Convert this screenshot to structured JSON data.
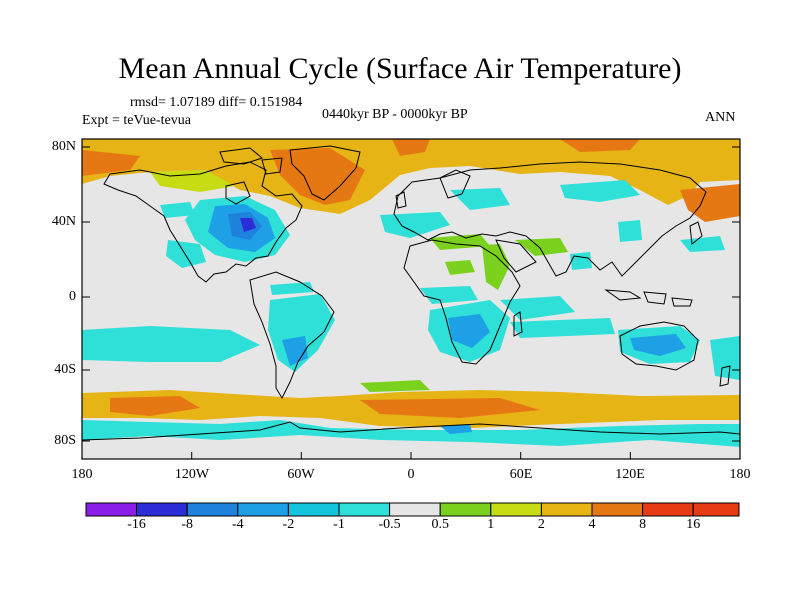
{
  "title": "Mean Annual Cycle (Surface Air Temperature)",
  "stats": "rmsd= 1.07189 diff= 0.151984",
  "experiment": "Expt = teVue-tevua",
  "period": "0440kyr BP - 0000kyr BP",
  "season": "ANN",
  "lat_labels": [
    "80N",
    "40N",
    "0",
    "40S",
    "80S"
  ],
  "lon_labels": [
    "180",
    "120W",
    "60W",
    "0",
    "60E",
    "120E",
    "180"
  ],
  "colorbar": {
    "labels": [
      "-16",
      "-8",
      "-4",
      "-2",
      "-1",
      "-0.5",
      "0.5",
      "1",
      "2",
      "4",
      "8",
      "16"
    ],
    "colors": [
      "#8a1ee6",
      "#2d2dd8",
      "#1e82dc",
      "#1ea0e6",
      "#14c3dc",
      "#2ee0d8",
      "#e6e6e6",
      "#7ad21e",
      "#c8dc14",
      "#e6b414",
      "#e67814",
      "#e63c14"
    ]
  },
  "palette": {
    "neutral": "#e6e6e6",
    "coast": "#000000"
  }
}
